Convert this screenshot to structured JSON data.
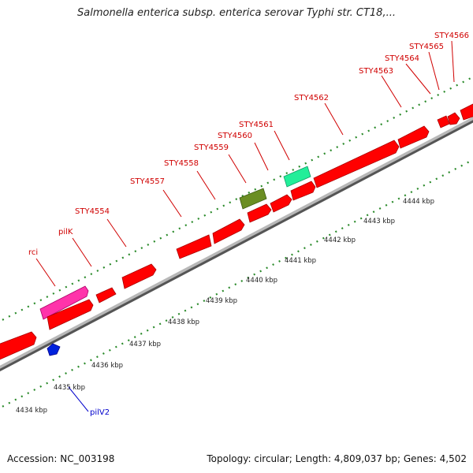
{
  "title": "Salmonella enterica subsp. enterica serovar Typhi str. CT18,...",
  "footer": {
    "accession": "Accession: NC_003198",
    "summary": "Topology: circular; Length: 4,809,037 bp; Genes: 4,502"
  },
  "colors": {
    "gene": "#ff0000",
    "gene_dark": "#aa0000",
    "backbone": "#8c8c8c",
    "tick": "#2a8a2a",
    "label_red": "#d00000",
    "label_blue": "#0000cc",
    "pink": "#ff33aa",
    "olive": "#6b8e23",
    "aqua": "#22ee99",
    "blue": "#0022dd"
  },
  "genes": [
    {
      "name": "rci",
      "color": "pink"
    },
    {
      "name": "pilK",
      "color": "red"
    },
    {
      "name": "STY4554",
      "color": "red"
    },
    {
      "name": "STY4557",
      "color": "red"
    },
    {
      "name": "STY4558",
      "color": "red"
    },
    {
      "name": "STY4559",
      "color": "olive"
    },
    {
      "name": "STY4560",
      "color": "red"
    },
    {
      "name": "STY4561",
      "color": "aqua"
    },
    {
      "name": "STY4562",
      "color": "red"
    },
    {
      "name": "STY4563",
      "color": "red"
    },
    {
      "name": "STY4564",
      "color": "red"
    },
    {
      "name": "STY4565",
      "color": "red"
    },
    {
      "name": "STY4566",
      "color": "red"
    },
    {
      "name": "pilV2",
      "color": "blue",
      "strand": "reverse"
    }
  ],
  "scale_labels": [
    "4434 kbp",
    "4435 kbp",
    "4436 kbp",
    "4437 kbp",
    "4438 kbp",
    "4439 kbp",
    "4440 kbp",
    "4441 kbp",
    "4442 kbp",
    "4443 kbp",
    "4444 kbp"
  ]
}
